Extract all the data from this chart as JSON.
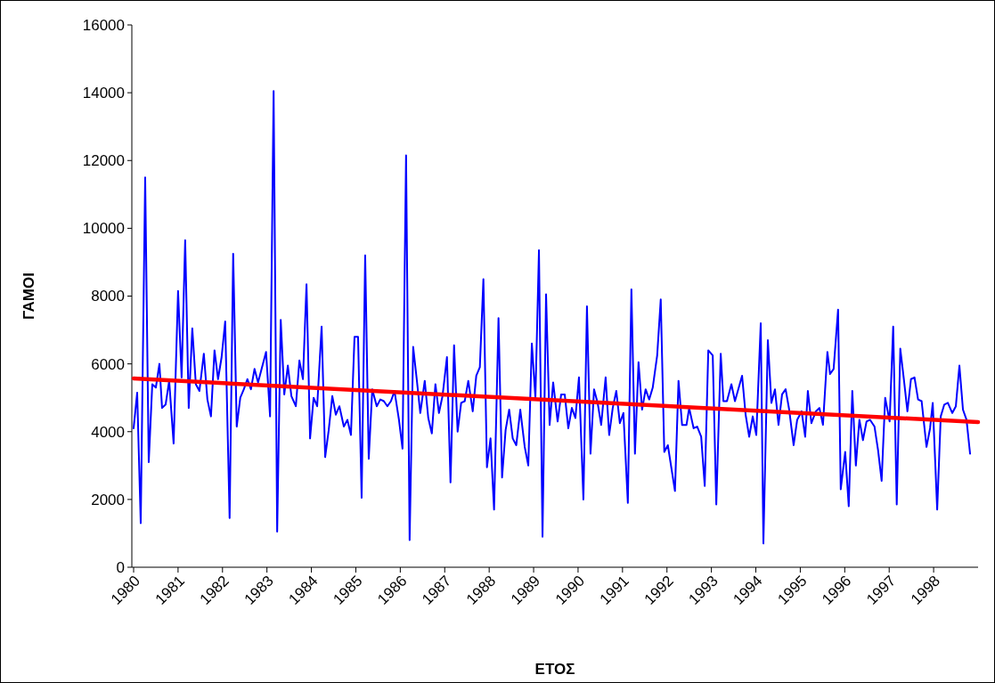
{
  "chart_data": {
    "type": "line",
    "xlabel": "ΕΤΟΣ",
    "ylabel": "ΓΑΜΟΙ",
    "xlim": [
      1980,
      1999
    ],
    "xticks": [
      1980,
      1981,
      1982,
      1983,
      1984,
      1985,
      1986,
      1987,
      1988,
      1989,
      1990,
      1991,
      1992,
      1993,
      1994,
      1995,
      1996,
      1997,
      1998
    ],
    "ylim": [
      0,
      16000
    ],
    "yticks": [
      0,
      2000,
      4000,
      6000,
      8000,
      10000,
      12000,
      14000,
      16000
    ],
    "grid": false,
    "marker": "none",
    "line_style": "solid",
    "series": [
      {
        "color": "#0000ff",
        "x": [
          1980.0,
          1980.08,
          1980.16,
          1980.26,
          1980.34,
          1980.42,
          1980.5,
          1980.58,
          1980.64,
          1980.72,
          1980.8,
          1980.9,
          1981.0,
          1981.08,
          1981.16,
          1981.24,
          1981.32,
          1981.4,
          1981.48,
          1981.58,
          1981.66,
          1981.74,
          1981.82,
          1981.9,
          1981.98,
          1982.06,
          1982.16,
          1982.24,
          1982.32,
          1982.4,
          1982.48,
          1982.56,
          1982.64,
          1982.72,
          1982.8,
          1982.88,
          1982.98,
          1983.07,
          1983.15,
          1983.23,
          1983.31,
          1983.39,
          1983.47,
          1983.55,
          1983.65,
          1983.73,
          1983.81,
          1983.89,
          1983.97,
          1984.05,
          1984.13,
          1984.23,
          1984.31,
          1984.39,
          1984.47,
          1984.55,
          1984.63,
          1984.73,
          1984.81,
          1984.89,
          1984.97,
          1985.05,
          1985.13,
          1985.21,
          1985.29,
          1985.37,
          1985.47,
          1985.55,
          1985.63,
          1985.71,
          1985.79,
          1985.87,
          1985.97,
          1986.05,
          1986.13,
          1986.21,
          1986.29,
          1986.37,
          1986.45,
          1986.55,
          1986.63,
          1986.71,
          1986.79,
          1986.87,
          1986.95,
          1987.05,
          1987.13,
          1987.21,
          1987.29,
          1987.37,
          1987.45,
          1987.53,
          1987.63,
          1987.71,
          1987.79,
          1987.87,
          1987.95,
          1988.03,
          1988.11,
          1988.21,
          1988.29,
          1988.37,
          1988.45,
          1988.53,
          1988.61,
          1988.7,
          1988.8,
          1988.88,
          1988.96,
          1989.04,
          1989.12,
          1989.2,
          1989.28,
          1989.36,
          1989.44,
          1989.54,
          1989.62,
          1989.7,
          1989.78,
          1989.86,
          1989.94,
          1990.02,
          1990.12,
          1990.2,
          1990.28,
          1990.36,
          1990.44,
          1990.52,
          1990.62,
          1990.7,
          1990.78,
          1990.86,
          1990.94,
          1991.02,
          1991.12,
          1991.2,
          1991.28,
          1991.36,
          1991.44,
          1991.52,
          1991.6,
          1991.68,
          1991.78,
          1991.86,
          1991.94,
          1992.02,
          1992.18,
          1992.26,
          1992.34,
          1992.44,
          1992.5,
          1992.6,
          1992.68,
          1992.77,
          1992.85,
          1992.93,
          1993.03,
          1993.11,
          1993.21,
          1993.27,
          1993.35,
          1993.45,
          1993.53,
          1993.69,
          1993.77,
          1993.85,
          1993.93,
          1994.01,
          1994.11,
          1994.17,
          1994.27,
          1994.35,
          1994.43,
          1994.51,
          1994.59,
          1994.67,
          1994.75,
          1994.85,
          1994.93,
          1995.03,
          1995.11,
          1995.17,
          1995.25,
          1995.35,
          1995.43,
          1995.51,
          1995.61,
          1995.67,
          1995.75,
          1995.85,
          1995.91,
          1996.01,
          1996.09,
          1996.17,
          1996.25,
          1996.33,
          1996.41,
          1996.49,
          1996.57,
          1996.67,
          1996.75,
          1996.83,
          1996.91,
          1997.01,
          1997.09,
          1997.17,
          1997.25,
          1997.33,
          1997.41,
          1997.49,
          1997.57,
          1997.65,
          1997.73,
          1997.84,
          1997.92,
          1997.98,
          1998.08,
          1998.16,
          1998.24,
          1998.32,
          1998.42,
          1998.5,
          1998.58,
          1998.66,
          1998.74,
          1998.82
        ],
        "values": [
          4100,
          5150,
          1300,
          11500,
          3100,
          5400,
          5300,
          6000,
          4700,
          4800,
          5500,
          3650,
          8150,
          5600,
          9650,
          4700,
          7050,
          5400,
          5200,
          6300,
          4950,
          4450,
          6400,
          5550,
          6200,
          7250,
          1450,
          9250,
          4150,
          5000,
          5250,
          5550,
          5250,
          5850,
          5450,
          5850,
          6350,
          4450,
          14050,
          1050,
          7300,
          5100,
          5950,
          5050,
          4750,
          6100,
          5550,
          8350,
          3800,
          5000,
          4750,
          7100,
          3250,
          4050,
          5050,
          4500,
          4750,
          4150,
          4350,
          3900,
          6800,
          6800,
          2050,
          9200,
          3200,
          5250,
          4750,
          4950,
          4900,
          4750,
          4900,
          5200,
          4350,
          3500,
          12150,
          800,
          6500,
          5550,
          4550,
          5500,
          4400,
          3950,
          5400,
          4550,
          5050,
          6200,
          2500,
          6550,
          4000,
          4850,
          4900,
          5500,
          4600,
          5650,
          5900,
          8500,
          2950,
          3800,
          1700,
          7350,
          2650,
          4050,
          4650,
          3800,
          3600,
          4650,
          3550,
          3000,
          6600,
          5000,
          9350,
          900,
          8050,
          4200,
          5450,
          4300,
          5100,
          5100,
          4100,
          4700,
          4400,
          5600,
          2000,
          7700,
          3350,
          5250,
          4850,
          4200,
          5600,
          3900,
          4700,
          5200,
          4250,
          4550,
          1900,
          8200,
          3350,
          6050,
          4650,
          5250,
          4950,
          5300,
          6250,
          7900,
          3400,
          3600,
          2250,
          5500,
          4200,
          4200,
          4700,
          4100,
          4150,
          3850,
          2400,
          6400,
          6250,
          1850,
          6300,
          4900,
          4900,
          5400,
          4900,
          5650,
          4500,
          3850,
          4450,
          3900,
          7200,
          700,
          6700,
          4850,
          5250,
          4200,
          5100,
          5250,
          4650,
          3600,
          4350,
          4600,
          3850,
          5200,
          4250,
          4600,
          4700,
          4200,
          6350,
          5700,
          5850,
          7600,
          2300,
          3400,
          1800,
          5200,
          3000,
          4350,
          3750,
          4300,
          4350,
          4150,
          3450,
          2550,
          5000,
          4300,
          7100,
          1850,
          6450,
          5550,
          4600,
          5550,
          5600,
          4950,
          4900,
          3550,
          4100,
          4850,
          1700,
          4450,
          4800,
          4850,
          4550,
          4750,
          5950,
          4650,
          4350,
          3350
        ]
      },
      {
        "color": "#ff0000",
        "x": [
          1980,
          1999
        ],
        "values": [
          5570,
          4280
        ]
      }
    ]
  }
}
